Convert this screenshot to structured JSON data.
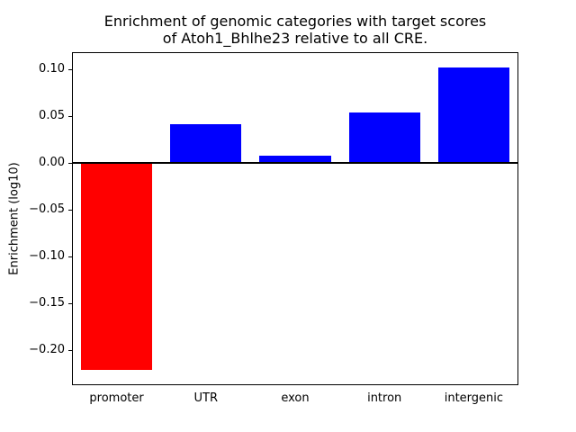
{
  "chart_data": {
    "type": "bar",
    "title_lines": [
      "Enrichment of genomic categories with target scores",
      "of Atoh1_Bhlhe23 relative to all CRE."
    ],
    "title": "Enrichment of genomic categories with target scores of Atoh1_Bhlhe23 relative to all CRE.",
    "xlabel": "",
    "ylabel": "Enrichment (log10)",
    "categories": [
      "promoter",
      "UTR",
      "exon",
      "intron",
      "intergenic"
    ],
    "values": [
      -0.222,
      0.041,
      0.007,
      0.054,
      0.102
    ],
    "colors": [
      "#ff0000",
      "#0000ff",
      "#0000ff",
      "#0000ff",
      "#0000ff"
    ],
    "positive_color": "#0000ff",
    "negative_color": "#ff0000",
    "ylim": [
      -0.238,
      0.118
    ],
    "yticks": [
      -0.2,
      -0.15,
      -0.1,
      -0.05,
      0.0,
      0.05,
      0.1
    ],
    "grid": false,
    "legend": "none",
    "bar_width_fraction": 0.8,
    "zero_line": true
  }
}
